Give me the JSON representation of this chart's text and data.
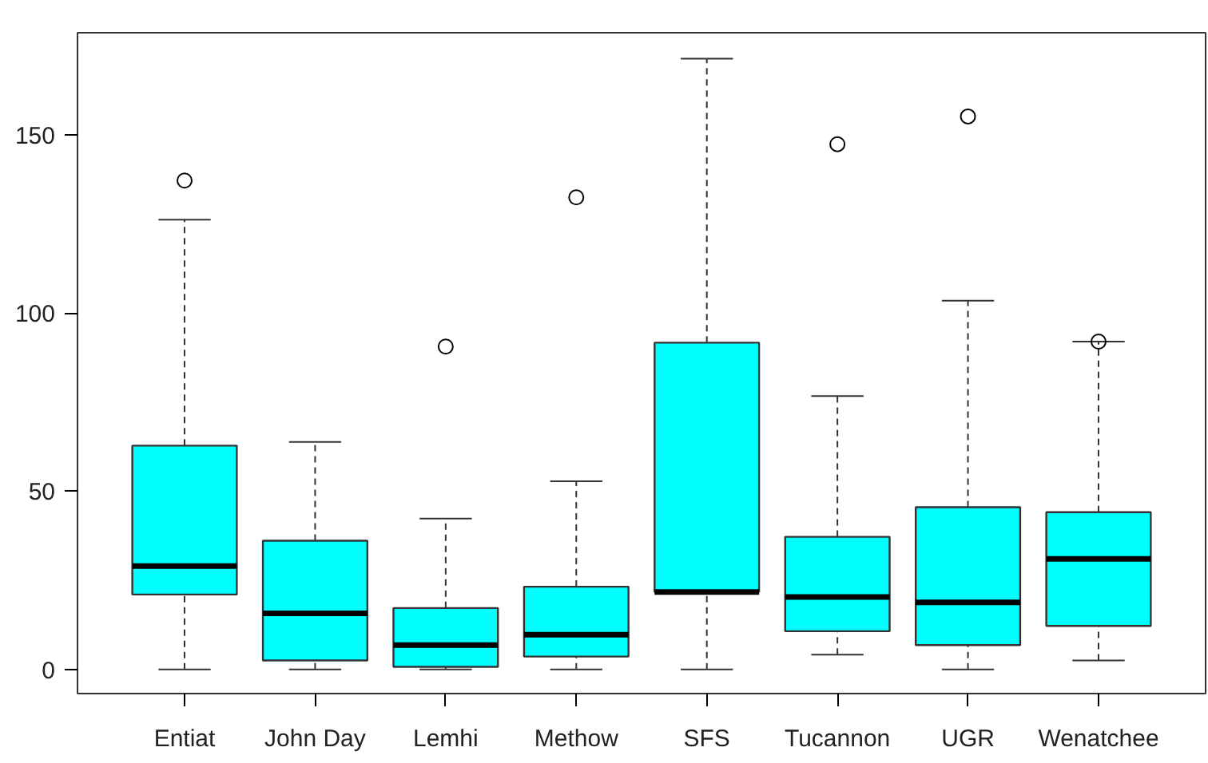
{
  "chart_data": {
    "type": "box",
    "categories": [
      "Entiat",
      "John Day",
      "Lemhi",
      "Methow",
      "SFS",
      "Tucannon",
      "UGR",
      "Wenatchee"
    ],
    "color": "#00ffff",
    "ylim": [
      -6.8,
      178.7
    ],
    "yticks": [
      0,
      50,
      100,
      150
    ],
    "grid": false,
    "boxes": [
      {
        "low": 0,
        "q1": 21.0,
        "median": 29.0,
        "q3": 62.8,
        "high": 126.2,
        "outliers": [
          137.2
        ]
      },
      {
        "low": 0,
        "q1": 2.5,
        "median": 15.7,
        "q3": 36.1,
        "high": 63.8
      },
      {
        "low": 0,
        "q1": 0.7,
        "median": 6.8,
        "q3": 17.2,
        "high": 42.3,
        "outliers": [
          90.6
        ]
      },
      {
        "low": 0,
        "q1": 3.6,
        "median": 9.7,
        "q3": 23.2,
        "high": 52.8,
        "outliers": [
          132.5
        ]
      },
      {
        "low": 0,
        "q1": 21.7,
        "median": 21.7,
        "q3": 91.7,
        "high": 171.4
      },
      {
        "low": 4.1,
        "q1": 10.7,
        "median": 20.3,
        "q3": 37.2,
        "high": 76.7,
        "outliers": [
          147.4
        ]
      },
      {
        "low": 0,
        "q1": 6.8,
        "median": 18.8,
        "q3": 45.5,
        "high": 103.5,
        "outliers": [
          155.2
        ]
      },
      {
        "low": 2.5,
        "q1": 12.2,
        "median": 31.0,
        "q3": 44.1,
        "high": 92.0,
        "outliers": [
          92.0
        ]
      }
    ]
  }
}
